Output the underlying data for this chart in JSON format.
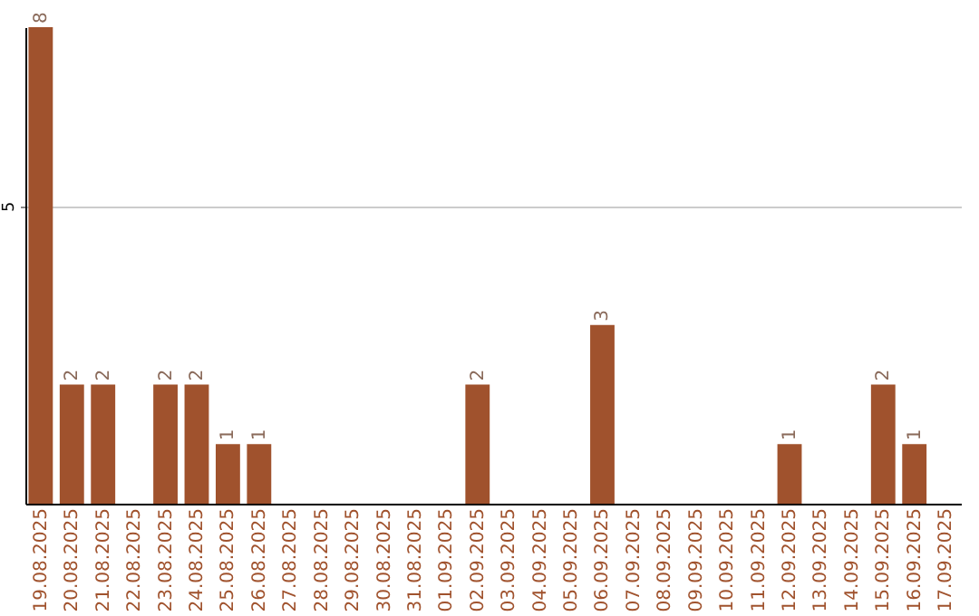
{
  "chart_data": {
    "type": "bar",
    "categories": [
      "19.08.2025",
      "20.08.2025",
      "21.08.2025",
      "22.08.2025",
      "23.08.2025",
      "24.08.2025",
      "25.08.2025",
      "26.08.2025",
      "27.08.2025",
      "28.08.2025",
      "29.08.2025",
      "30.08.2025",
      "31.08.2025",
      "01.09.2025",
      "02.09.2025",
      "03.09.2025",
      "04.09.2025",
      "05.09.2025",
      "06.09.2025",
      "07.09.2025",
      "08.09.2025",
      "09.09.2025",
      "10.09.2025",
      "11.09.2025",
      "12.09.2025",
      "13.09.2025",
      "14.09.2025",
      "15.09.2025",
      "16.09.2025",
      "17.09.2025"
    ],
    "values": [
      8,
      2,
      2,
      0,
      2,
      2,
      1,
      1,
      0,
      0,
      0,
      0,
      0,
      0,
      2,
      0,
      0,
      0,
      3,
      0,
      0,
      0,
      0,
      0,
      1,
      0,
      0,
      2,
      1,
      0
    ],
    "value_labels": [
      "8",
      "2",
      "2",
      null,
      "2",
      "2",
      "1",
      "1",
      null,
      null,
      null,
      null,
      null,
      null,
      "2",
      null,
      null,
      null,
      "3",
      null,
      null,
      null,
      null,
      null,
      "1",
      null,
      null,
      "2",
      "1",
      null
    ],
    "color": "#a0522d",
    "ylim": [
      0,
      8
    ],
    "yticks": [
      5
    ],
    "grid": "y"
  }
}
